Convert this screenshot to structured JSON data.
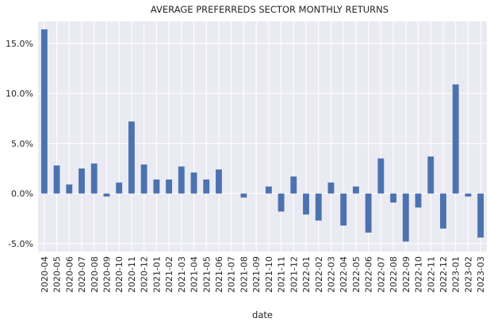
{
  "chart_data": {
    "type": "bar",
    "title": "AVERAGE PREFERREDS SECTOR MONTHLY RETURNS",
    "xlabel": "date",
    "ylabel": "",
    "categories": [
      "2020-04",
      "2020-05",
      "2020-06",
      "2020-07",
      "2020-08",
      "2020-09",
      "2020-10",
      "2020-11",
      "2020-12",
      "2021-01",
      "2021-02",
      "2021-03",
      "2021-04",
      "2021-05",
      "2021-06",
      "2021-07",
      "2021-08",
      "2021-09",
      "2021-10",
      "2021-11",
      "2021-12",
      "2022-01",
      "2022-02",
      "2022-03",
      "2022-04",
      "2022-05",
      "2022-06",
      "2022-07",
      "2022-08",
      "2022-09",
      "2022-10",
      "2022-11",
      "2022-12",
      "2023-01",
      "2023-02",
      "2023-03"
    ],
    "values": [
      16.4,
      2.8,
      0.9,
      2.5,
      3.0,
      -0.3,
      1.1,
      7.2,
      2.9,
      1.4,
      1.4,
      2.7,
      2.1,
      1.4,
      2.4,
      0.0,
      -0.4,
      0.0,
      0.7,
      -1.8,
      1.7,
      -2.1,
      -2.7,
      1.1,
      -3.2,
      0.7,
      -3.9,
      3.5,
      -0.9,
      -4.8,
      -1.4,
      3.7,
      -3.5,
      10.9,
      -0.3,
      -4.4
    ],
    "yticks": [
      -5,
      0,
      5,
      10,
      15
    ],
    "ytick_labels": [
      "-5.0%",
      "0.0%",
      "5.0%",
      "10.0%",
      "15.0%"
    ],
    "ylim": [
      -5.8,
      17.2
    ],
    "grid": true,
    "bar_color": "#4c72b0",
    "background_color": "#eaeaf2",
    "grid_color": "#ffffff"
  }
}
